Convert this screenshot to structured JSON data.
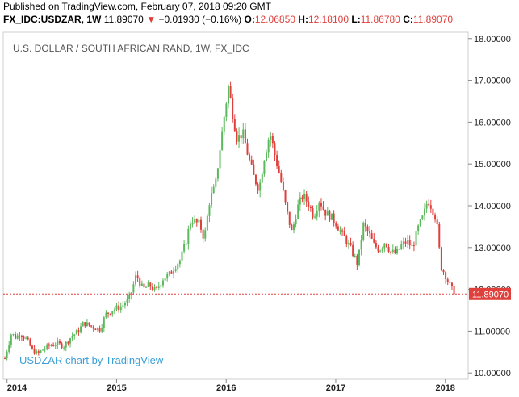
{
  "published": "Published on TradingView.com, February 07, 2018 09:20 GMT",
  "header": {
    "symbol": "FX_IDC:USDZAR, 1W",
    "price": "11.89070",
    "arrow": "▼",
    "change": "−0.01930 (−0.16%)",
    "o_label": "O:",
    "o_value": "12.06850",
    "h_label": "H:",
    "h_value": "12.18100",
    "l_label": "L:",
    "l_value": "11.86780",
    "c_label": "C:",
    "c_value": "11.89070"
  },
  "colors": {
    "up": "#5cb85c",
    "down": "#e0403c",
    "last_line": "#e0403c",
    "credit": "#3ba0d8",
    "axis": "#cfcfcf"
  },
  "chart_data": {
    "type": "candlestick",
    "title": "U.S. DOLLAR / SOUTH AFRICAN RAND, 1W, FX_IDC",
    "watermark": "USDZAR chart by TradingView",
    "ylim": [
      9.85,
      18.15
    ],
    "y_ticks": [
      "10.00000",
      "11.00000",
      "12.00000",
      "13.00000",
      "14.00000",
      "15.00000",
      "16.00000",
      "17.00000",
      "18.00000"
    ],
    "x_ticks": [
      "2014",
      "2015",
      "2016",
      "2017",
      "2018"
    ],
    "x_range": [
      2013.98,
      2018.12
    ],
    "last_price": {
      "value": 11.8907,
      "label": "11.89070"
    },
    "close_path": [
      [
        2013.98,
        10.35
      ],
      [
        2014.04,
        10.95
      ],
      [
        2014.08,
        10.85
      ],
      [
        2014.12,
        10.95
      ],
      [
        2014.18,
        10.8
      ],
      [
        2014.23,
        10.55
      ],
      [
        2014.28,
        10.45
      ],
      [
        2014.32,
        10.55
      ],
      [
        2014.38,
        10.65
      ],
      [
        2014.45,
        10.7
      ],
      [
        2014.52,
        10.65
      ],
      [
        2014.58,
        10.85
      ],
      [
        2014.65,
        11.0
      ],
      [
        2014.7,
        11.2
      ],
      [
        2014.78,
        11.1
      ],
      [
        2014.85,
        11.05
      ],
      [
        2014.9,
        11.4
      ],
      [
        2014.96,
        11.5
      ],
      [
        2015.0,
        11.55
      ],
      [
        2015.05,
        11.6
      ],
      [
        2015.12,
        11.8
      ],
      [
        2015.18,
        12.35
      ],
      [
        2015.24,
        12.0
      ],
      [
        2015.3,
        12.1
      ],
      [
        2015.36,
        11.95
      ],
      [
        2015.42,
        12.25
      ],
      [
        2015.48,
        12.35
      ],
      [
        2015.53,
        12.55
      ],
      [
        2015.58,
        12.7
      ],
      [
        2015.63,
        13.1
      ],
      [
        2015.68,
        13.7
      ],
      [
        2015.72,
        13.6
      ],
      [
        2015.76,
        13.55
      ],
      [
        2015.8,
        13.2
      ],
      [
        2015.85,
        14.15
      ],
      [
        2015.9,
        14.45
      ],
      [
        2015.94,
        15.3
      ],
      [
        2015.98,
        16.1
      ],
      [
        2016.02,
        16.85
      ],
      [
        2016.06,
        16.2
      ],
      [
        2016.1,
        15.6
      ],
      [
        2016.15,
        15.75
      ],
      [
        2016.2,
        15.2
      ],
      [
        2016.25,
        14.7
      ],
      [
        2016.3,
        14.4
      ],
      [
        2016.35,
        15.2
      ],
      [
        2016.4,
        15.75
      ],
      [
        2016.45,
        15.15
      ],
      [
        2016.5,
        14.6
      ],
      [
        2016.55,
        13.9
      ],
      [
        2016.6,
        13.35
      ],
      [
        2016.65,
        13.95
      ],
      [
        2016.7,
        14.25
      ],
      [
        2016.75,
        14.05
      ],
      [
        2016.8,
        13.75
      ],
      [
        2016.85,
        14.15
      ],
      [
        2016.9,
        13.85
      ],
      [
        2016.95,
        13.75
      ],
      [
        2017.0,
        13.6
      ],
      [
        2017.05,
        13.35
      ],
      [
        2017.1,
        13.15
      ],
      [
        2017.15,
        12.9
      ],
      [
        2017.2,
        12.6
      ],
      [
        2017.25,
        13.55
      ],
      [
        2017.3,
        13.35
      ],
      [
        2017.35,
        13.05
      ],
      [
        2017.4,
        12.95
      ],
      [
        2017.45,
        13.15
      ],
      [
        2017.5,
        12.9
      ],
      [
        2017.55,
        12.85
      ],
      [
        2017.6,
        13.05
      ],
      [
        2017.65,
        13.15
      ],
      [
        2017.7,
        13.0
      ],
      [
        2017.75,
        13.45
      ],
      [
        2017.8,
        13.75
      ],
      [
        2017.84,
        14.15
      ],
      [
        2017.88,
        13.95
      ],
      [
        2017.92,
        13.65
      ],
      [
        2017.96,
        12.55
      ],
      [
        2018.0,
        12.35
      ],
      [
        2018.04,
        12.1
      ],
      [
        2018.08,
        11.89
      ]
    ]
  }
}
